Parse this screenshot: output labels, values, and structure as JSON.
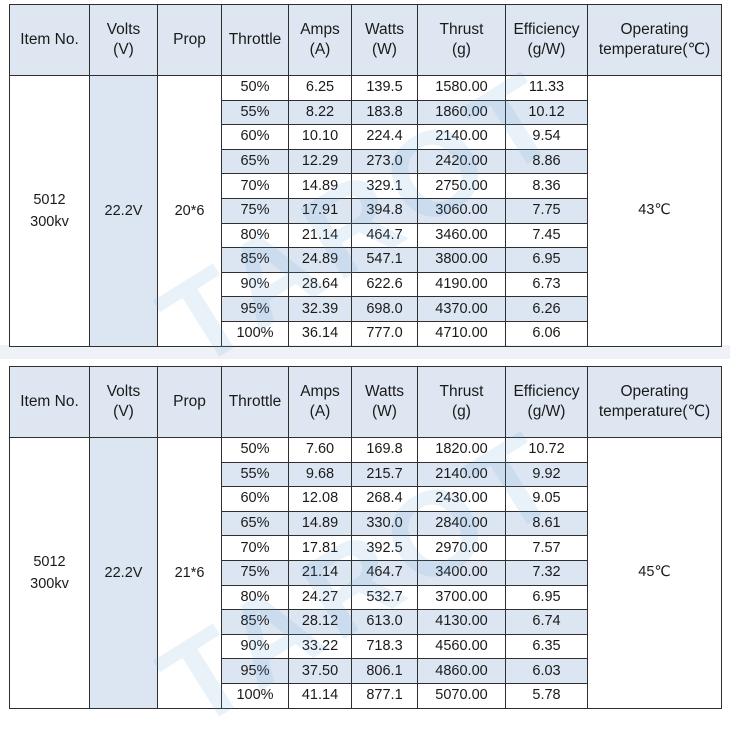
{
  "headers": {
    "item_no": "Item No.",
    "volts_1": "Volts",
    "volts_2": "(V)",
    "prop": "Prop",
    "throttle": "Throttle",
    "amps_1": "Amps",
    "amps_2": "(A)",
    "watts_1": "Watts",
    "watts_2": "(W)",
    "thrust_1": "Thrust",
    "thrust_2": "(g)",
    "eff_1": "Efficiency",
    "eff_2": "(g/W)",
    "temp_1": "Operating",
    "temp_2": "temperature(℃)"
  },
  "watermark": "TAROT",
  "tables": [
    {
      "item_1": "5012",
      "item_2": "300kv",
      "volts": "22.2V",
      "prop": "20*6",
      "temperature": "43℃",
      "rows": [
        {
          "throttle": "50%",
          "amps": "6.25",
          "watts": "139.5",
          "thrust": "1580.00",
          "efficiency": "11.33"
        },
        {
          "throttle": "55%",
          "amps": "8.22",
          "watts": "183.8",
          "thrust": "1860.00",
          "efficiency": "10.12"
        },
        {
          "throttle": "60%",
          "amps": "10.10",
          "watts": "224.4",
          "thrust": "2140.00",
          "efficiency": "9.54"
        },
        {
          "throttle": "65%",
          "amps": "12.29",
          "watts": "273.0",
          "thrust": "2420.00",
          "efficiency": "8.86"
        },
        {
          "throttle": "70%",
          "amps": "14.89",
          "watts": "329.1",
          "thrust": "2750.00",
          "efficiency": "8.36"
        },
        {
          "throttle": "75%",
          "amps": "17.91",
          "watts": "394.8",
          "thrust": "3060.00",
          "efficiency": "7.75"
        },
        {
          "throttle": "80%",
          "amps": "21.14",
          "watts": "464.7",
          "thrust": "3460.00",
          "efficiency": "7.45"
        },
        {
          "throttle": "85%",
          "amps": "24.89",
          "watts": "547.1",
          "thrust": "3800.00",
          "efficiency": "6.95"
        },
        {
          "throttle": "90%",
          "amps": "28.64",
          "watts": "622.6",
          "thrust": "4190.00",
          "efficiency": "6.73"
        },
        {
          "throttle": "95%",
          "amps": "32.39",
          "watts": "698.0",
          "thrust": "4370.00",
          "efficiency": "6.26"
        },
        {
          "throttle": "100%",
          "amps": "36.14",
          "watts": "777.0",
          "thrust": "4710.00",
          "efficiency": "6.06"
        }
      ]
    },
    {
      "item_1": "5012",
      "item_2": "300kv",
      "volts": "22.2V",
      "prop": "21*6",
      "temperature": "45℃",
      "rows": [
        {
          "throttle": "50%",
          "amps": "7.60",
          "watts": "169.8",
          "thrust": "1820.00",
          "efficiency": "10.72"
        },
        {
          "throttle": "55%",
          "amps": "9.68",
          "watts": "215.7",
          "thrust": "2140.00",
          "efficiency": "9.92"
        },
        {
          "throttle": "60%",
          "amps": "12.08",
          "watts": "268.4",
          "thrust": "2430.00",
          "efficiency": "9.05"
        },
        {
          "throttle": "65%",
          "amps": "14.89",
          "watts": "330.0",
          "thrust": "2840.00",
          "efficiency": "8.61"
        },
        {
          "throttle": "70%",
          "amps": "17.81",
          "watts": "392.5",
          "thrust": "2970.00",
          "efficiency": "7.57"
        },
        {
          "throttle": "75%",
          "amps": "21.14",
          "watts": "464.7",
          "thrust": "3400.00",
          "efficiency": "7.32"
        },
        {
          "throttle": "80%",
          "amps": "24.27",
          "watts": "532.7",
          "thrust": "3700.00",
          "efficiency": "6.95"
        },
        {
          "throttle": "85%",
          "amps": "28.12",
          "watts": "613.0",
          "thrust": "4130.00",
          "efficiency": "6.74"
        },
        {
          "throttle": "90%",
          "amps": "33.22",
          "watts": "718.3",
          "thrust": "4560.00",
          "efficiency": "6.35"
        },
        {
          "throttle": "95%",
          "amps": "37.50",
          "watts": "806.1",
          "thrust": "4860.00",
          "efficiency": "6.03"
        },
        {
          "throttle": "100%",
          "amps": "41.14",
          "watts": "877.1",
          "thrust": "5070.00",
          "efficiency": "5.78"
        }
      ]
    }
  ]
}
